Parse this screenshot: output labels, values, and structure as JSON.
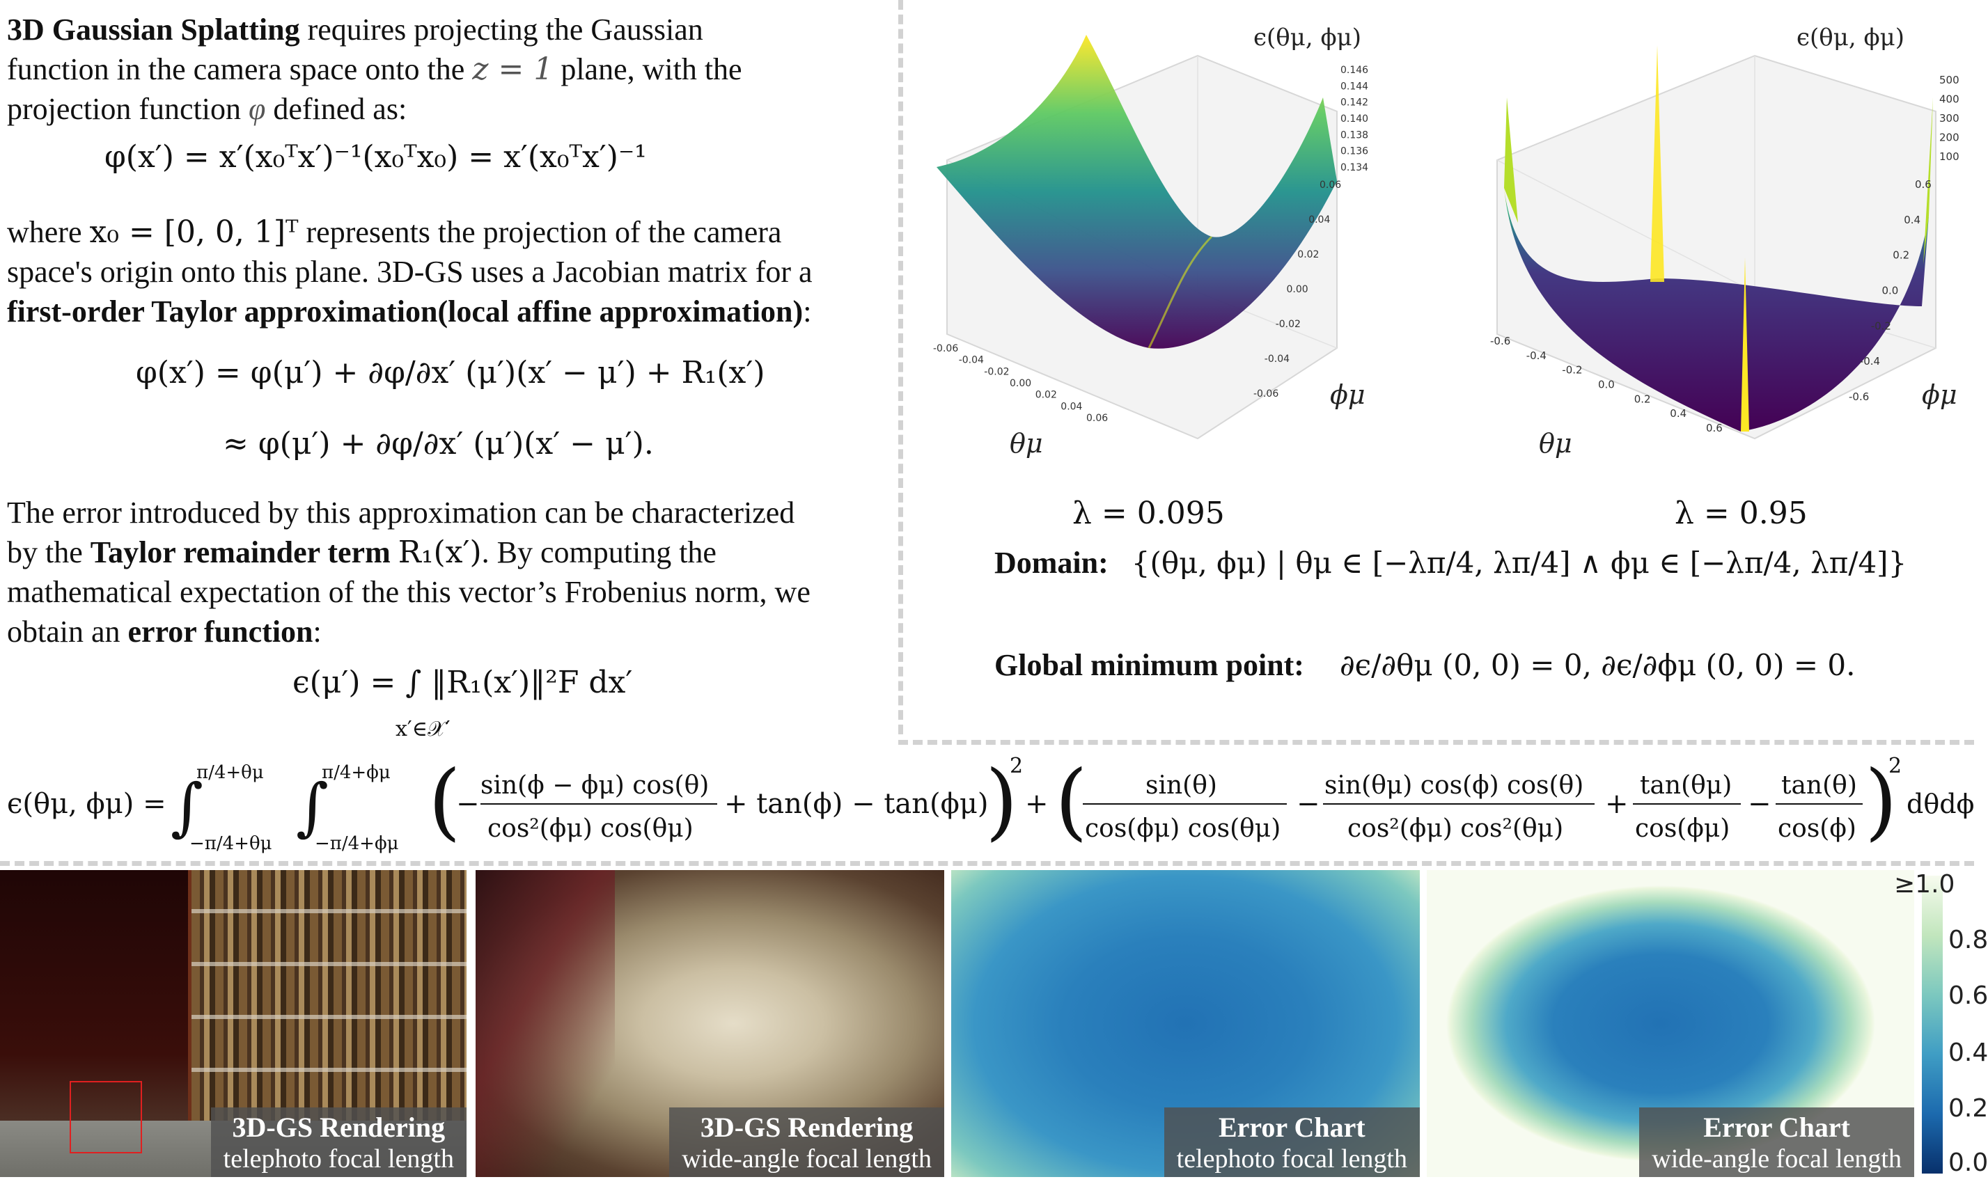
{
  "left_text": {
    "p1_bold": "3D Gaussian Splatting",
    "p1_rest_a": " requires projecting the Gaussian",
    "p1_line2_a": "function in the camera space onto the",
    "p1_z": "z = 1",
    "p1_line2_b": " plane, with the",
    "p1_line3_a": "projection function",
    "p1_phi": "φ",
    "p1_line3_b": " defined as:",
    "eq1": "φ(x′) = x′(x₀ᵀx′)⁻¹(x₀ᵀx₀) = x′(x₀ᵀx′)⁻¹",
    "p2_line1_a": "where",
    "p2_x0": "x₀ = [0, 0, 1]ᵀ",
    "p2_line1_b": "represents the projection of the camera",
    "p2_line2": "space's origin onto this plane. 3D-GS uses a Jacobian matrix for a",
    "p2_line3_bold": "first-order Taylor approximation(local affine approximation)",
    "p2_line3_end": ":",
    "eq2a": "φ(x′) = φ(μ′) + ∂φ/∂x′ (μ′)(x′ − μ′) + R₁(x′)",
    "eq2b": "≈ φ(μ′) + ∂φ/∂x′ (μ′)(x′ − μ′).",
    "p3_line1": "The error introduced by this approximation can be characterized",
    "p3_line2_a": "by the ",
    "p3_line2_bold": "Taylor remainder term",
    "p3_r1": "R₁(x′)",
    "p3_line2_b": ". By computing the",
    "p3_line3": "mathematical expectation of the this vector’s Frobenius norm, we",
    "p3_line4_a": "obtain an ",
    "p3_line4_bold": "error function",
    "p3_line4_b": ":",
    "eq3": "ϵ(μ′) = ∫ ‖R₁(x′)‖²F dx′",
    "eq3_sub": "x′∈𝒳′"
  },
  "chart_data": [
    {
      "type": "surface3d",
      "title": "ϵ(θμ, ϕμ)",
      "xlabel": "θμ",
      "ylabel": "ϕμ",
      "x_ticks": [
        "-0.06",
        "-0.04",
        "-0.02",
        "0.00",
        "0.02",
        "0.04",
        "0.06"
      ],
      "y_ticks": [
        "0.06",
        "0.04",
        "0.02",
        "0.00",
        "-0.02",
        "-0.04",
        "-0.06"
      ],
      "z_ticks": [
        "0.146",
        "0.144",
        "0.142",
        "0.140",
        "0.138",
        "0.136",
        "0.134"
      ],
      "zlim": [
        0.133,
        0.147
      ],
      "colormap": "viridis",
      "lambda_label": "λ = 0.095"
    },
    {
      "type": "surface3d",
      "title": "ϵ(θμ, ϕμ)",
      "xlabel": "θμ",
      "ylabel": "ϕμ",
      "x_ticks": [
        "-0.6",
        "-0.4",
        "-0.2",
        "0.0",
        "0.2",
        "0.4",
        "0.6"
      ],
      "y_ticks": [
        "0.6",
        "0.4",
        "0.2",
        "0.0",
        "-0.2",
        "-0.4",
        "-0.6"
      ],
      "z_ticks": [
        "500",
        "400",
        "300",
        "200",
        "100"
      ],
      "zlim": [
        0,
        520
      ],
      "colormap": "viridis",
      "lambda_label": "λ = 0.95"
    }
  ],
  "right_text": {
    "domain_label": "Domain:",
    "domain_expr": "{(θμ, ϕμ) | θμ ∈ [−λπ/4, λπ/4]  ∧  ϕμ ∈ [−λπ/4, λπ/4]}",
    "gmin_label": "Global minimum point:",
    "gmin_expr": "∂ϵ/∂θμ (0, 0) = 0,  ∂ϵ/∂ϕμ (0, 0) = 0."
  },
  "big_equation": {
    "lhs": "ϵ(θμ, ϕμ) =",
    "int_upper1": "π/4+θμ",
    "int_lower1": "−π/4+θμ",
    "int_upper2": "π/4+ϕμ",
    "int_lower2": "−π/4+ϕμ",
    "frac1_num": "sin(ϕ − ϕμ) cos(θ)",
    "frac1_den": "cos²(ϕμ) cos(θμ)",
    "term_a": "+ tan(ϕ) − tan(ϕμ)",
    "frac2_num": "sin(θ)",
    "frac2_den": "cos(ϕμ) cos(θμ)",
    "frac3_num": "sin(θμ) cos(ϕ) cos(θ)",
    "frac3_den": "cos²(ϕμ) cos²(θμ)",
    "frac4_num": "tan(θμ)",
    "frac4_den": "cos(ϕμ)",
    "frac5_num": "tan(θ)",
    "frac5_den": "cos(ϕ)",
    "tail": "dθdϕ"
  },
  "panels": [
    {
      "title": "3D-GS Rendering",
      "subtitle": "telephoto focal length"
    },
    {
      "title": "3D-GS Rendering",
      "subtitle": "wide-angle focal length"
    },
    {
      "title": "Error Chart",
      "subtitle": "telephoto focal length"
    },
    {
      "title": "Error Chart",
      "subtitle": "wide-angle focal length"
    }
  ],
  "colorbar": {
    "ticks": [
      "≥1.0",
      "0.8",
      "0.6",
      "0.4",
      "0.2",
      "0.0"
    ],
    "colors": [
      "#08306b",
      "#1c6aae",
      "#3f9dc4",
      "#7cc8bf",
      "#c2e6bd",
      "#f7fbef"
    ]
  }
}
